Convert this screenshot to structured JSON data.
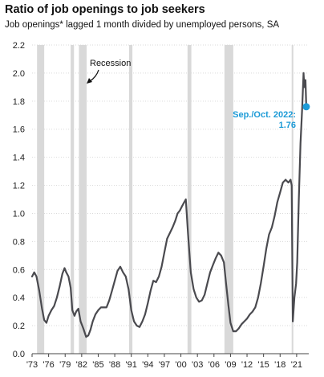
{
  "chart_data": {
    "type": "line",
    "title": "Ratio of job openings to job seekers",
    "subtitle": "Job openings* lagged 1 month divided by unemployed persons, SA",
    "xlabel": "",
    "ylabel": "",
    "xlim": [
      1973,
      2023.2
    ],
    "ylim": [
      0.0,
      2.2
    ],
    "y_ticks": [
      0.0,
      0.2,
      0.4,
      0.6,
      0.8,
      1.0,
      1.2,
      1.4,
      1.6,
      1.8,
      2.0,
      2.2
    ],
    "y_tick_labels": [
      "0.0",
      "0.2",
      "0.4",
      "0.6",
      "0.8",
      "1.0",
      "1.2",
      "1.4",
      "1.6",
      "1.8",
      "2.0",
      "2.2"
    ],
    "x_ticks": [
      1973,
      1976,
      1979,
      1982,
      1985,
      1988,
      1991,
      1994,
      1997,
      2000,
      2003,
      2006,
      2009,
      2012,
      2015,
      2018,
      2021
    ],
    "x_tick_labels": [
      "'73",
      "'76",
      "'79",
      "'82",
      "'85",
      "'88",
      "'91",
      "'94",
      "'97",
      "'00",
      "'03",
      "'06",
      "'09",
      "'12",
      "'15",
      "'18",
      "'21"
    ],
    "grid": "horizontal dotted",
    "colors": {
      "line": "#4a4a4f",
      "recession_shade": "#d9d9d9",
      "highlight": "#1d9bd7",
      "text": "#111111"
    },
    "recessions": [
      [
        1973.9,
        1975.2
      ],
      [
        1980.0,
        1980.6
      ],
      [
        1981.5,
        1982.9
      ],
      [
        1990.6,
        1991.2
      ],
      [
        2001.2,
        2001.9
      ],
      [
        2007.9,
        2009.5
      ],
      [
        2020.1,
        2020.4
      ]
    ],
    "series": [
      {
        "values": [
          [
            1973.0,
            0.55
          ],
          [
            1973.4,
            0.58
          ],
          [
            1973.8,
            0.55
          ],
          [
            1974.3,
            0.45
          ],
          [
            1974.8,
            0.32
          ],
          [
            1975.2,
            0.24
          ],
          [
            1975.6,
            0.22
          ],
          [
            1976.0,
            0.27
          ],
          [
            1976.5,
            0.31
          ],
          [
            1977.0,
            0.34
          ],
          [
            1977.5,
            0.4
          ],
          [
            1978.0,
            0.48
          ],
          [
            1978.5,
            0.57
          ],
          [
            1978.9,
            0.61
          ],
          [
            1979.2,
            0.58
          ],
          [
            1979.6,
            0.55
          ],
          [
            1980.0,
            0.47
          ],
          [
            1980.3,
            0.31
          ],
          [
            1980.7,
            0.27
          ],
          [
            1981.0,
            0.3
          ],
          [
            1981.4,
            0.32
          ],
          [
            1981.8,
            0.23
          ],
          [
            1982.3,
            0.18
          ],
          [
            1982.8,
            0.12
          ],
          [
            1983.2,
            0.13
          ],
          [
            1983.6,
            0.17
          ],
          [
            1984.0,
            0.23
          ],
          [
            1984.5,
            0.28
          ],
          [
            1985.0,
            0.31
          ],
          [
            1985.5,
            0.33
          ],
          [
            1986.0,
            0.33
          ],
          [
            1986.5,
            0.33
          ],
          [
            1987.0,
            0.38
          ],
          [
            1987.5,
            0.45
          ],
          [
            1988.0,
            0.52
          ],
          [
            1988.5,
            0.59
          ],
          [
            1989.0,
            0.62
          ],
          [
            1989.5,
            0.58
          ],
          [
            1990.0,
            0.55
          ],
          [
            1990.5,
            0.46
          ],
          [
            1991.0,
            0.31
          ],
          [
            1991.5,
            0.23
          ],
          [
            1992.0,
            0.2
          ],
          [
            1992.5,
            0.19
          ],
          [
            1993.0,
            0.23
          ],
          [
            1993.5,
            0.28
          ],
          [
            1994.0,
            0.36
          ],
          [
            1994.5,
            0.45
          ],
          [
            1995.0,
            0.52
          ],
          [
            1995.5,
            0.51
          ],
          [
            1996.0,
            0.55
          ],
          [
            1996.5,
            0.62
          ],
          [
            1997.0,
            0.72
          ],
          [
            1997.5,
            0.82
          ],
          [
            1998.0,
            0.86
          ],
          [
            1998.5,
            0.9
          ],
          [
            1999.0,
            0.95
          ],
          [
            1999.4,
            1.0
          ],
          [
            1999.8,
            1.02
          ],
          [
            2000.2,
            1.05
          ],
          [
            2000.6,
            1.08
          ],
          [
            2000.9,
            1.1
          ],
          [
            2001.3,
            0.85
          ],
          [
            2001.8,
            0.58
          ],
          [
            2002.3,
            0.46
          ],
          [
            2002.8,
            0.4
          ],
          [
            2003.3,
            0.37
          ],
          [
            2003.8,
            0.38
          ],
          [
            2004.3,
            0.42
          ],
          [
            2004.8,
            0.5
          ],
          [
            2005.3,
            0.58
          ],
          [
            2005.8,
            0.63
          ],
          [
            2006.3,
            0.68
          ],
          [
            2006.8,
            0.72
          ],
          [
            2007.3,
            0.7
          ],
          [
            2007.8,
            0.65
          ],
          [
            2008.2,
            0.5
          ],
          [
            2008.6,
            0.35
          ],
          [
            2009.0,
            0.22
          ],
          [
            2009.5,
            0.16
          ],
          [
            2010.0,
            0.16
          ],
          [
            2010.5,
            0.18
          ],
          [
            2011.0,
            0.21
          ],
          [
            2011.5,
            0.23
          ],
          [
            2012.0,
            0.25
          ],
          [
            2012.5,
            0.28
          ],
          [
            2013.0,
            0.3
          ],
          [
            2013.5,
            0.33
          ],
          [
            2014.0,
            0.4
          ],
          [
            2014.5,
            0.5
          ],
          [
            2015.0,
            0.62
          ],
          [
            2015.5,
            0.75
          ],
          [
            2016.0,
            0.85
          ],
          [
            2016.5,
            0.9
          ],
          [
            2017.0,
            0.98
          ],
          [
            2017.5,
            1.08
          ],
          [
            2018.0,
            1.15
          ],
          [
            2018.5,
            1.22
          ],
          [
            2019.0,
            1.24
          ],
          [
            2019.5,
            1.22
          ],
          [
            2019.9,
            1.24
          ],
          [
            2020.1,
            1.2
          ],
          [
            2020.3,
            0.23
          ],
          [
            2020.6,
            0.4
          ],
          [
            2020.9,
            0.5
          ],
          [
            2021.1,
            0.65
          ],
          [
            2021.4,
            1.1
          ],
          [
            2021.7,
            1.5
          ],
          [
            2022.0,
            1.75
          ],
          [
            2022.25,
            2.0
          ],
          [
            2022.4,
            1.9
          ],
          [
            2022.6,
            1.95
          ],
          [
            2022.75,
            1.76
          ]
        ]
      }
    ],
    "annotations": {
      "recession_label": "Recession",
      "latest_label_line1": "Sep./Oct. 2022:",
      "latest_label_line2": "1.76",
      "latest_point": [
        2022.75,
        1.76
      ]
    }
  }
}
